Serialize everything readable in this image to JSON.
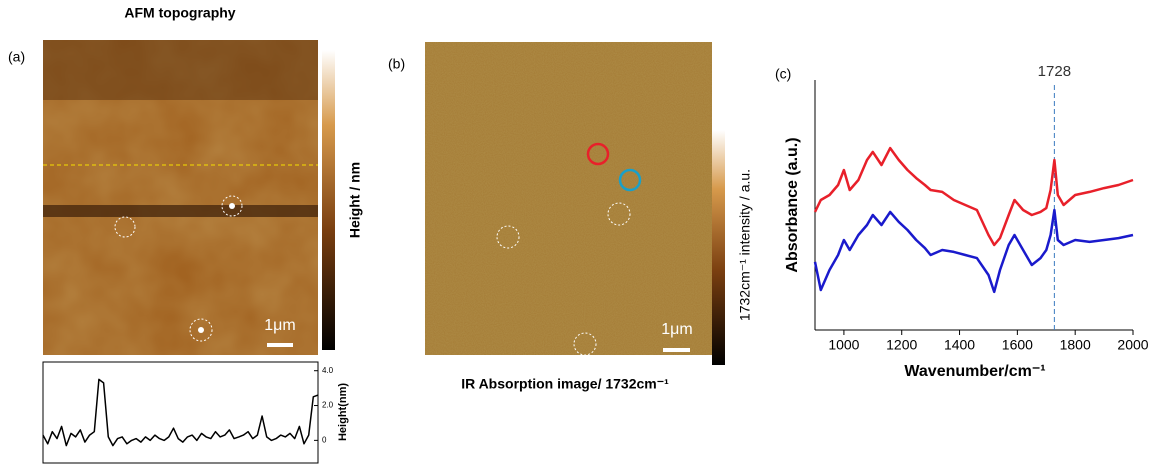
{
  "chart_data": [
    {
      "type": "image",
      "panel_label": "(a)",
      "title": "AFM topography",
      "colorbar_label": "Height / nm",
      "scale_bar": "1μm"
    },
    {
      "type": "line",
      "y_label": "Height(nm)",
      "ylim": [
        -1.3,
        4.5
      ],
      "yticks": [
        {
          "value": 4,
          "label": "4.0"
        },
        {
          "value": 2,
          "label": "2.0"
        },
        0
      ],
      "series": [
        {
          "color": "#000000",
          "values": [
            0.3,
            -0.2,
            0.5,
            0.1,
            0.8,
            -0.3,
            0.4,
            0.2,
            0.6,
            -0.1,
            0.3,
            0.5,
            3.5,
            3.3,
            0.2,
            -0.3,
            0.1,
            0.2,
            -0.2,
            0.0,
            0.1,
            -0.1,
            0.2,
            0.0,
            0.3,
            0.1,
            0.0,
            0.2,
            0.7,
            0.1,
            -0.1,
            0.2,
            0.3,
            0.0,
            0.4,
            0.2,
            0.1,
            0.5,
            0.2,
            0.3,
            0.6,
            0.1,
            0.2,
            0.3,
            0.5,
            0.1,
            0.3,
            1.4,
            0.2,
            0.0,
            0.1,
            0.3,
            0.2,
            0.4,
            0.1,
            0.8,
            -0.2,
            0.3,
            2.5,
            2.6
          ]
        }
      ]
    },
    {
      "type": "image",
      "panel_label": "(b)",
      "caption": "IR Absorption image/ 1732cm⁻¹",
      "colorbar_label": "1732cm⁻¹ intensity / a.u.",
      "scale_bar": "1μm"
    },
    {
      "type": "line",
      "panel_label": "(c)",
      "x_label": "Wavenumber/cm⁻¹",
      "y_label": "Absorbance (a.u.)",
      "xlim": [
        900,
        2000
      ],
      "xticks": [
        1000,
        1200,
        1400,
        1600,
        1800,
        2000
      ],
      "ylim": [
        0,
        4
      ],
      "annotation": {
        "text": "1728",
        "x": 1728
      },
      "x": [
        900,
        920,
        950,
        980,
        1000,
        1020,
        1050,
        1080,
        1100,
        1130,
        1160,
        1190,
        1220,
        1250,
        1280,
        1300,
        1340,
        1380,
        1420,
        1460,
        1500,
        1520,
        1540,
        1570,
        1590,
        1620,
        1650,
        1680,
        1700,
        1715,
        1728,
        1740,
        1760,
        1800,
        1850,
        1900,
        1950,
        2000
      ],
      "series": [
        {
          "color": "#e8202a",
          "values": [
            1.89,
            2.08,
            2.16,
            2.32,
            2.56,
            2.24,
            2.4,
            2.72,
            2.85,
            2.64,
            2.91,
            2.72,
            2.56,
            2.43,
            2.32,
            2.24,
            2.21,
            2.08,
            2.0,
            1.92,
            1.52,
            1.36,
            1.47,
            1.84,
            2.08,
            1.92,
            1.84,
            1.89,
            1.95,
            2.24,
            2.72,
            2.16,
            2.0,
            2.16,
            2.21,
            2.27,
            2.32,
            2.4
          ]
        },
        {
          "color": "#1a1acc",
          "values": [
            1.09,
            0.64,
            0.96,
            1.2,
            1.44,
            1.28,
            1.52,
            1.68,
            1.84,
            1.68,
            1.89,
            1.73,
            1.6,
            1.44,
            1.31,
            1.2,
            1.28,
            1.25,
            1.2,
            1.15,
            0.88,
            0.61,
            0.96,
            1.36,
            1.52,
            1.28,
            1.04,
            1.15,
            1.28,
            1.52,
            1.92,
            1.44,
            1.36,
            1.44,
            1.41,
            1.44,
            1.47,
            1.52
          ]
        }
      ]
    }
  ]
}
